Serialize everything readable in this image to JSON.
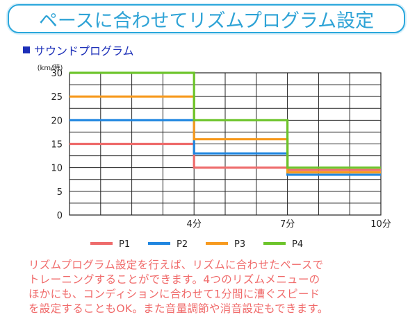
{
  "header": {
    "title": "ペースに合わせてリズムプログラム設定"
  },
  "section": {
    "title": "サウンドプログラム"
  },
  "chart_data": {
    "type": "line",
    "title": "",
    "ylabel": "(km/時)",
    "xlabel": "",
    "ylim": [
      0,
      30
    ],
    "xlim": [
      0,
      10
    ],
    "y_ticks": [
      "0",
      "5",
      "10",
      "15",
      "20",
      "25",
      "30"
    ],
    "x_ticks": [
      {
        "value": 4,
        "label": "4分"
      },
      {
        "value": 7,
        "label": "7分"
      },
      {
        "value": 10,
        "label": "10分"
      }
    ],
    "grid": true,
    "legend_position": "bottom",
    "series": [
      {
        "name": "P1",
        "color": "#ee6b6b",
        "points": [
          [
            0,
            15
          ],
          [
            4,
            15
          ],
          [
            4,
            10
          ],
          [
            7,
            10
          ],
          [
            7,
            9.5
          ],
          [
            10,
            9.5
          ]
        ]
      },
      {
        "name": "P2",
        "color": "#1f86e0",
        "points": [
          [
            0,
            20
          ],
          [
            4,
            20
          ],
          [
            4,
            13
          ],
          [
            7,
            13
          ],
          [
            7,
            8.5
          ],
          [
            10,
            8.5
          ]
        ]
      },
      {
        "name": "P3",
        "color": "#f79a1e",
        "points": [
          [
            0,
            25
          ],
          [
            4,
            25
          ],
          [
            4,
            16
          ],
          [
            7,
            16
          ],
          [
            7,
            9
          ],
          [
            10,
            9
          ]
        ]
      },
      {
        "name": "P4",
        "color": "#6cc42a",
        "points": [
          [
            0,
            30
          ],
          [
            4,
            30
          ],
          [
            4,
            20
          ],
          [
            7,
            20
          ],
          [
            7,
            10
          ],
          [
            10,
            10
          ]
        ]
      }
    ]
  },
  "description": {
    "lines": [
      "リズムプログラム設定を行えば、リズムに合わせたペースで",
      "トレーニングすることができます。4つのリズムメニューの",
      "ほかにも、コンディションに合わせて1分間に漕ぐスピード",
      "を設定することもOK。また音量調節や消音設定もできます。"
    ]
  }
}
